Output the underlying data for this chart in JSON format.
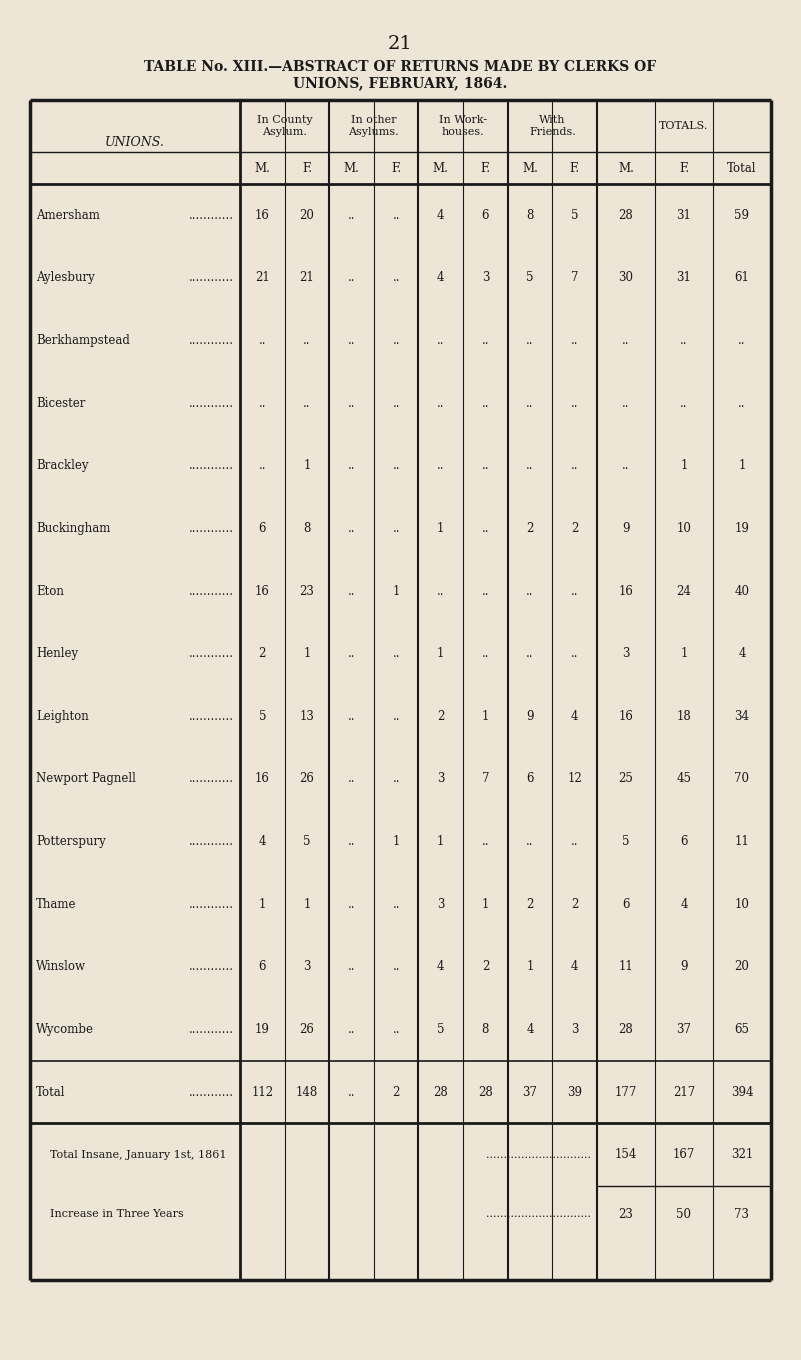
{
  "page_number": "21",
  "title_line1": "TABLE No. XIII.—ABSTRACT OF RETURNS MADE BY CLERKS OF",
  "title_line2": "UNIONS, FEBRUARY, 1864.",
  "bg_color": "#ede5d5",
  "table_bg": "#ede5d5",
  "header_groups": [
    "In County\nAsylum.",
    "In other\nAsylums.",
    "In Work-\nhouses.",
    "With\nFriends.",
    "TOTALS."
  ],
  "sub_headers": [
    "M.",
    "F.",
    "M.",
    "F.",
    "M.",
    "F.",
    "M.",
    "F.",
    "M.",
    "F.",
    "Total"
  ],
  "unions_label": "UNIONS.",
  "row_names": [
    "Amersham",
    "Aylesbury",
    "Berkhampstead",
    "Bicester",
    "Brackley",
    "Buckingham",
    "Eton",
    "Henley",
    "Leighton",
    "Newport Pagnell",
    "Potterspury",
    "Thame",
    "Winslow",
    "Wycombe"
  ],
  "rows": [
    [
      "16",
      "20",
      "..",
      "..",
      "4",
      "6",
      "8",
      "5",
      "28",
      "31",
      "59"
    ],
    [
      "21",
      "21",
      "..",
      "..",
      "4",
      "3",
      "5",
      "7",
      "30",
      "31",
      "61"
    ],
    [
      "..",
      "..",
      "..",
      "..",
      "..",
      "..",
      "..",
      "..",
      "..",
      "..",
      ".."
    ],
    [
      "..",
      "..",
      "..",
      "..",
      "..",
      "..",
      "..",
      "..",
      "..",
      "..",
      ".."
    ],
    [
      "..",
      "1",
      "..",
      "..",
      "..",
      "..",
      "..",
      "..",
      "..",
      "1",
      "1"
    ],
    [
      "6",
      "8",
      "..",
      "..",
      "1",
      "..",
      "2",
      "2",
      "9",
      "10",
      "19"
    ],
    [
      "16",
      "23",
      "..",
      "1",
      "..",
      "..",
      "..",
      "..",
      "16",
      "24",
      "40"
    ],
    [
      "2",
      "1",
      "..",
      "..",
      "1",
      "..",
      "..",
      "..",
      "3",
      "1",
      "4"
    ],
    [
      "5",
      "13",
      "..",
      "..",
      "2",
      "1",
      "9",
      "4",
      "16",
      "18",
      "34"
    ],
    [
      "16",
      "26",
      "..",
      "..",
      "3",
      "7",
      "6",
      "12",
      "25",
      "45",
      "70"
    ],
    [
      "4",
      "5",
      "..",
      "1",
      "1",
      "..",
      "..",
      "..",
      "5",
      "6",
      "11"
    ],
    [
      "1",
      "1",
      "..",
      "..",
      "3",
      "1",
      "2",
      "2",
      "6",
      "4",
      "10"
    ],
    [
      "6",
      "3",
      "..",
      "..",
      "4",
      "2",
      "1",
      "4",
      "11",
      "9",
      "20"
    ],
    [
      "19",
      "26",
      "..",
      "..",
      "5",
      "8",
      "4",
      "3",
      "28",
      "37",
      "65"
    ]
  ],
  "total_vals": [
    "112",
    "148",
    "..",
    "2",
    "28",
    "28",
    "37",
    "39",
    "177",
    "217",
    "394"
  ],
  "footer_rows": [
    {
      "label": "Total Insane, January 1st, 1861",
      "vals": [
        "154",
        "167",
        "321"
      ]
    },
    {
      "label": "Increase in Three Years",
      "vals": [
        "23",
        "50",
        "73"
      ]
    }
  ]
}
